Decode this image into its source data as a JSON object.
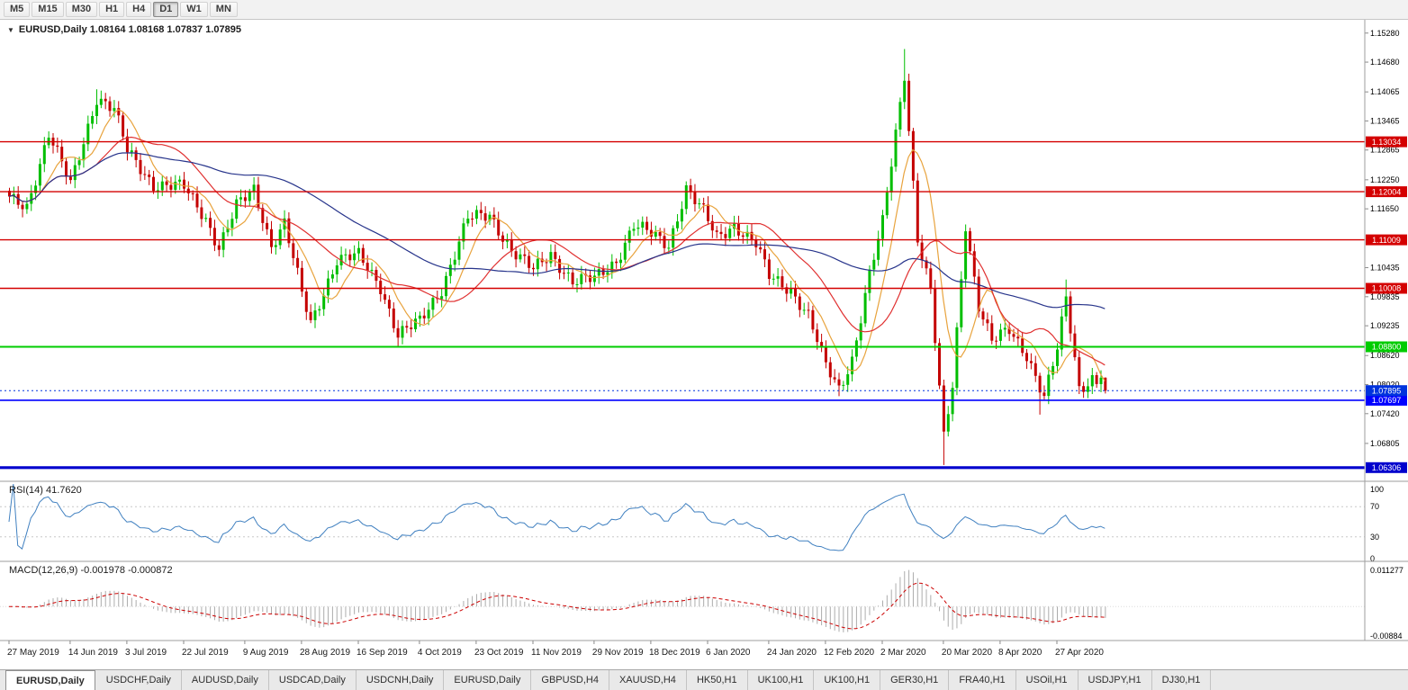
{
  "toolbar": {
    "timeframes": [
      "M5",
      "M15",
      "M30",
      "H1",
      "H4",
      "D1",
      "W1",
      "MN"
    ],
    "active": "D1"
  },
  "chart": {
    "header": "EURUSD,Daily 1.08164 1.08168 1.07837 1.07895",
    "collapse_icon": "▼"
  },
  "rsi": {
    "label": "RSI(14) 41.7620",
    "period": 14,
    "value": 41.762,
    "levels": [
      "100",
      "70",
      "30",
      "0"
    ]
  },
  "macd": {
    "label": "MACD(12,26,9) -0.001978 -0.000872",
    "fast": 12,
    "slow": 26,
    "signal": 9,
    "macd_value": -0.001978,
    "signal_value": -0.000872,
    "axis_top": "0.011277",
    "axis_bottom": "-0.00884",
    "axis_max_value": 0.011277,
    "axis_min_value": -0.00884
  },
  "tabs": [
    {
      "label": "EURUSD,Daily",
      "active": true
    },
    {
      "label": "USDCHF,Daily"
    },
    {
      "label": "AUDUSD,Daily"
    },
    {
      "label": "USDCAD,Daily"
    },
    {
      "label": "USDCNH,Daily"
    },
    {
      "label": "EURUSD,Daily"
    },
    {
      "label": "GBPUSD,H4"
    },
    {
      "label": "XAUUSD,H4"
    },
    {
      "label": "HK50,H1"
    },
    {
      "label": "UK100,H1"
    },
    {
      "label": "UK100,H1"
    },
    {
      "label": "GER30,H1"
    },
    {
      "label": "FRA40,H1"
    },
    {
      "label": "USOil,H1"
    },
    {
      "label": "USDJPY,H1"
    },
    {
      "label": "DJ30,H1"
    }
  ],
  "colors": {
    "bull": "#00BE00",
    "bear": "#C40000",
    "rsi_line": "#4080C0",
    "macd_hist": "#ACACAC",
    "macd_signal": "#CC0000",
    "axis_border": "#9E9E9E",
    "dotted_level": "#C8C8C8",
    "axis_text": "#000000",
    "date_text": "#1a1a1a"
  },
  "chart_data": {
    "type": "candlestick",
    "symbol": "EURUSD",
    "timeframe": "Daily",
    "ohlc_display": {
      "open": 1.08164,
      "high": 1.08168,
      "low": 1.07837,
      "close": 1.07895
    },
    "num_candles": 252,
    "price_range": {
      "axis_max": 1.1548,
      "axis_min": 1.0606
    },
    "y_axis_ticks": [
      "1.15280",
      "1.14680",
      "1.14065",
      "1.13465",
      "1.12865",
      "1.12250",
      "1.11650",
      "1.10435",
      "1.09835",
      "1.09235",
      "1.08620",
      "1.08020",
      "1.07420",
      "1.06805"
    ],
    "x_labels": [
      "27 May 2019",
      "14 Jun 2019",
      "3 Jul 2019",
      "22 Jul 2019",
      "9 Aug 2019",
      "28 Aug 2019",
      "16 Sep 2019",
      "4 Oct 2019",
      "23 Oct 2019",
      "11 Nov 2019",
      "29 Nov 2019",
      "18 Dec 2019",
      "6 Jan 2020",
      "24 Jan 2020",
      "12 Feb 2020",
      "2 Mar 2020",
      "20 Mar 2020",
      "8 Apr 2020",
      "27 Apr 2020"
    ],
    "x_label_indices": [
      0,
      14,
      27,
      40,
      54,
      67,
      80,
      94,
      107,
      120,
      134,
      147,
      160,
      174,
      187,
      200,
      214,
      227,
      240
    ],
    "price_anchors": [
      [
        0,
        1.1185
      ],
      [
        4,
        1.117
      ],
      [
        9,
        1.132
      ],
      [
        14,
        1.1215
      ],
      [
        20,
        1.1395
      ],
      [
        24,
        1.137
      ],
      [
        27,
        1.1285
      ],
      [
        33,
        1.1215
      ],
      [
        40,
        1.121
      ],
      [
        45,
        1.1145
      ],
      [
        48,
        1.1085
      ],
      [
        52,
        1.117
      ],
      [
        56,
        1.1205
      ],
      [
        60,
        1.109
      ],
      [
        63,
        1.1135
      ],
      [
        67,
        1.099
      ],
      [
        69,
        1.0928
      ],
      [
        75,
        1.106
      ],
      [
        80,
        1.1068
      ],
      [
        85,
        1.1005
      ],
      [
        89,
        1.0905
      ],
      [
        94,
        1.0932
      ],
      [
        99,
        1.1
      ],
      [
        105,
        1.1145
      ],
      [
        110,
        1.1152
      ],
      [
        115,
        1.108
      ],
      [
        120,
        1.1038
      ],
      [
        124,
        1.1072
      ],
      [
        129,
        1.1015
      ],
      [
        134,
        1.102
      ],
      [
        139,
        1.1058
      ],
      [
        143,
        1.1132
      ],
      [
        147,
        1.1112
      ],
      [
        151,
        1.109
      ],
      [
        155,
        1.1208
      ],
      [
        159,
        1.1158
      ],
      [
        162,
        1.1105
      ],
      [
        166,
        1.1132
      ],
      [
        171,
        1.1092
      ],
      [
        174,
        1.1025
      ],
      [
        179,
        1.0998
      ],
      [
        183,
        1.0945
      ],
      [
        187,
        1.084
      ],
      [
        190,
        1.0792
      ],
      [
        193,
        1.0855
      ],
      [
        197,
        1.103
      ],
      [
        200,
        1.1135
      ],
      [
        205,
        1.1445
      ],
      [
        208,
        1.1105
      ],
      [
        211,
        1.0995
      ],
      [
        214,
        1.069
      ],
      [
        216,
        1.08
      ],
      [
        219,
        1.1135
      ],
      [
        222,
        1.0965
      ],
      [
        225,
        1.089
      ],
      [
        229,
        1.0915
      ],
      [
        233,
        1.0865
      ],
      [
        237,
        1.0775
      ],
      [
        240,
        1.0875
      ],
      [
        242,
        1.098
      ],
      [
        245,
        1.0795
      ],
      [
        248,
        1.0815
      ],
      [
        251,
        1.079
      ]
    ],
    "wick_high": {
      "20": 1.1412,
      "205": 1.1495,
      "242": 1.1019,
      "251": 1.08168
    },
    "wick_low": {
      "89": 1.0879,
      "190": 1.0778,
      "214": 1.0636,
      "236": 1.074,
      "251": 1.07837
    },
    "horizontal_levels": [
      {
        "price": 1.13034,
        "label": "1.13034",
        "color": "#D40000",
        "width": 1.4
      },
      {
        "price": 1.12004,
        "label": "1.12004",
        "color": "#D40000",
        "width": 1.4
      },
      {
        "price": 1.11009,
        "label": "1.11009",
        "color": "#D40000",
        "width": 1.4
      },
      {
        "price": 1.10008,
        "label": "1.10008",
        "color": "#D40000",
        "width": 1.4
      },
      {
        "price": 1.088,
        "label": "1.08800",
        "color": "#00CC00",
        "width": 2
      },
      {
        "price": 1.07697,
        "label": "1.07697",
        "color": "#0000FF",
        "width": 1.6
      },
      {
        "price": 1.06306,
        "label": "1.06306",
        "color": "#0000CD",
        "width": 3.2
      }
    ],
    "current_price": {
      "value": 1.07895,
      "label": "1.07895",
      "color": "#0033DD"
    },
    "moving_averages": [
      {
        "period": 8,
        "color": "#E8A33D",
        "name": "fast-ma"
      },
      {
        "period": 21,
        "color": "#E03030",
        "name": "mid-ma"
      },
      {
        "period": 55,
        "color": "#27348B",
        "name": "slow-ma"
      }
    ]
  }
}
